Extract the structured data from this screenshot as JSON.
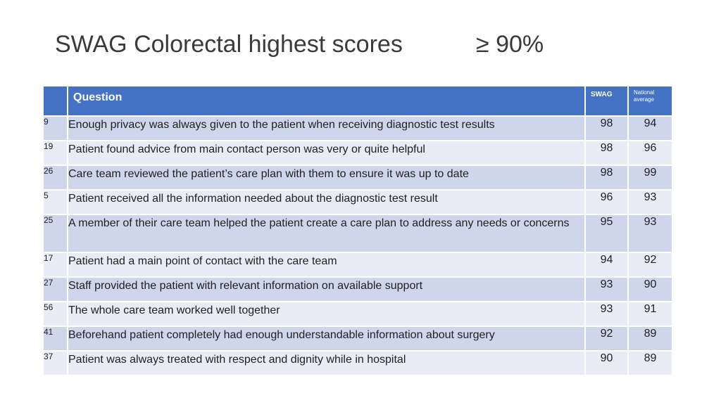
{
  "slide": {
    "title": "SWAG Colorectal highest scores",
    "threshold": "≥ 90%"
  },
  "table": {
    "headers": {
      "num": "",
      "question": "Question",
      "swag": "SWAG",
      "national": "National average"
    },
    "rows": [
      {
        "num": "9",
        "question": "Enough privacy was always given to the patient when receiving diagnostic test results",
        "swag": "98",
        "national": "94"
      },
      {
        "num": "19",
        "question": "Patient found advice from main contact person was very or quite helpful",
        "swag": "98",
        "national": "96"
      },
      {
        "num": "26",
        "question": "Care team reviewed the patient’s care plan with them to ensure it was up to date",
        "swag": "98",
        "national": "99"
      },
      {
        "num": "5",
        "question": "Patient received all the information needed about the diagnostic test result",
        "swag": "96",
        "national": "93"
      },
      {
        "num": "25",
        "question": "A member of their care team helped the patient create a care plan to address any needs or concerns",
        "swag": "95",
        "national": "93"
      },
      {
        "num": "17",
        "question": "Patient had a main point of contact with the care team",
        "swag": "94",
        "national": "92"
      },
      {
        "num": "27",
        "question": "Staff provided the patient with relevant information on available support",
        "swag": "93",
        "national": "90"
      },
      {
        "num": "56",
        "question": "The whole care team worked well together",
        "swag": "93",
        "national": "91"
      },
      {
        "num": "41",
        "question": "Beforehand patient completely had enough understandable information about surgery",
        "swag": "92",
        "national": "89"
      },
      {
        "num": "37",
        "question": "Patient was always treated with respect and dignity while in hospital",
        "swag": "90",
        "national": "89"
      }
    ]
  },
  "colors": {
    "header_bg": "#4472c4",
    "row_dark": "#cfd5ea",
    "row_light": "#e9ebf5",
    "title_text": "#3a3a3a"
  }
}
